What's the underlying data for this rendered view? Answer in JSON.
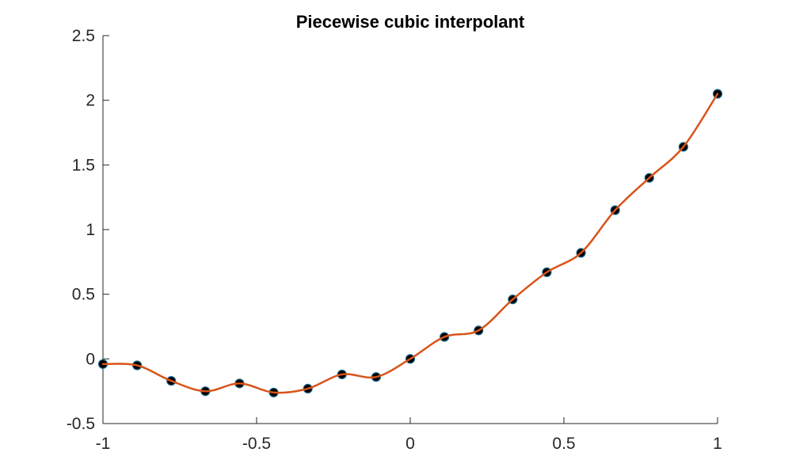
{
  "chart_data": {
    "type": "line",
    "title": "Piecewise cubic interpolant",
    "xlabel": "",
    "ylabel": "",
    "xlim": [
      -1,
      1
    ],
    "ylim": [
      -0.5,
      2.5
    ],
    "xticks": [
      -1,
      -0.5,
      0,
      0.5,
      1
    ],
    "yticks": [
      -0.5,
      0,
      0.5,
      1,
      1.5,
      2,
      2.5
    ],
    "xtick_labels": [
      "-1",
      "-0.5",
      "0",
      "0.5",
      "1"
    ],
    "ytick_labels": [
      "-0.5",
      "0",
      "0.5",
      "1",
      "1.5",
      "2",
      "2.5"
    ],
    "grid": false,
    "legend": "none",
    "series": [
      {
        "kind": "markers",
        "color": "#000000",
        "x": [
          -1,
          -0.8889,
          -0.7778,
          -0.6667,
          -0.5556,
          -0.4444,
          -0.3333,
          -0.2222,
          -0.1111,
          0,
          0.1111,
          0.2222,
          0.3333,
          0.4444,
          0.5556,
          0.6667,
          0.7778,
          0.8889,
          1
        ],
        "y": [
          -0.04,
          -0.05,
          -0.17,
          -0.25,
          -0.19,
          -0.26,
          -0.23,
          -0.12,
          -0.14,
          0.0,
          0.17,
          0.22,
          0.46,
          0.67,
          0.82,
          1.15,
          1.4,
          1.64,
          2.05
        ]
      },
      {
        "kind": "curve",
        "color": "#d95319",
        "x": [
          -1,
          -0.8889,
          -0.7778,
          -0.6667,
          -0.5556,
          -0.4444,
          -0.3333,
          -0.2222,
          -0.1111,
          0,
          0.1111,
          0.2222,
          0.3333,
          0.4444,
          0.5556,
          0.6667,
          0.7778,
          0.8889,
          1
        ],
        "y": [
          -0.04,
          -0.05,
          -0.17,
          -0.25,
          -0.19,
          -0.26,
          -0.23,
          -0.12,
          -0.14,
          0.0,
          0.17,
          0.22,
          0.46,
          0.67,
          0.82,
          1.15,
          1.4,
          1.64,
          2.05
        ]
      }
    ]
  }
}
